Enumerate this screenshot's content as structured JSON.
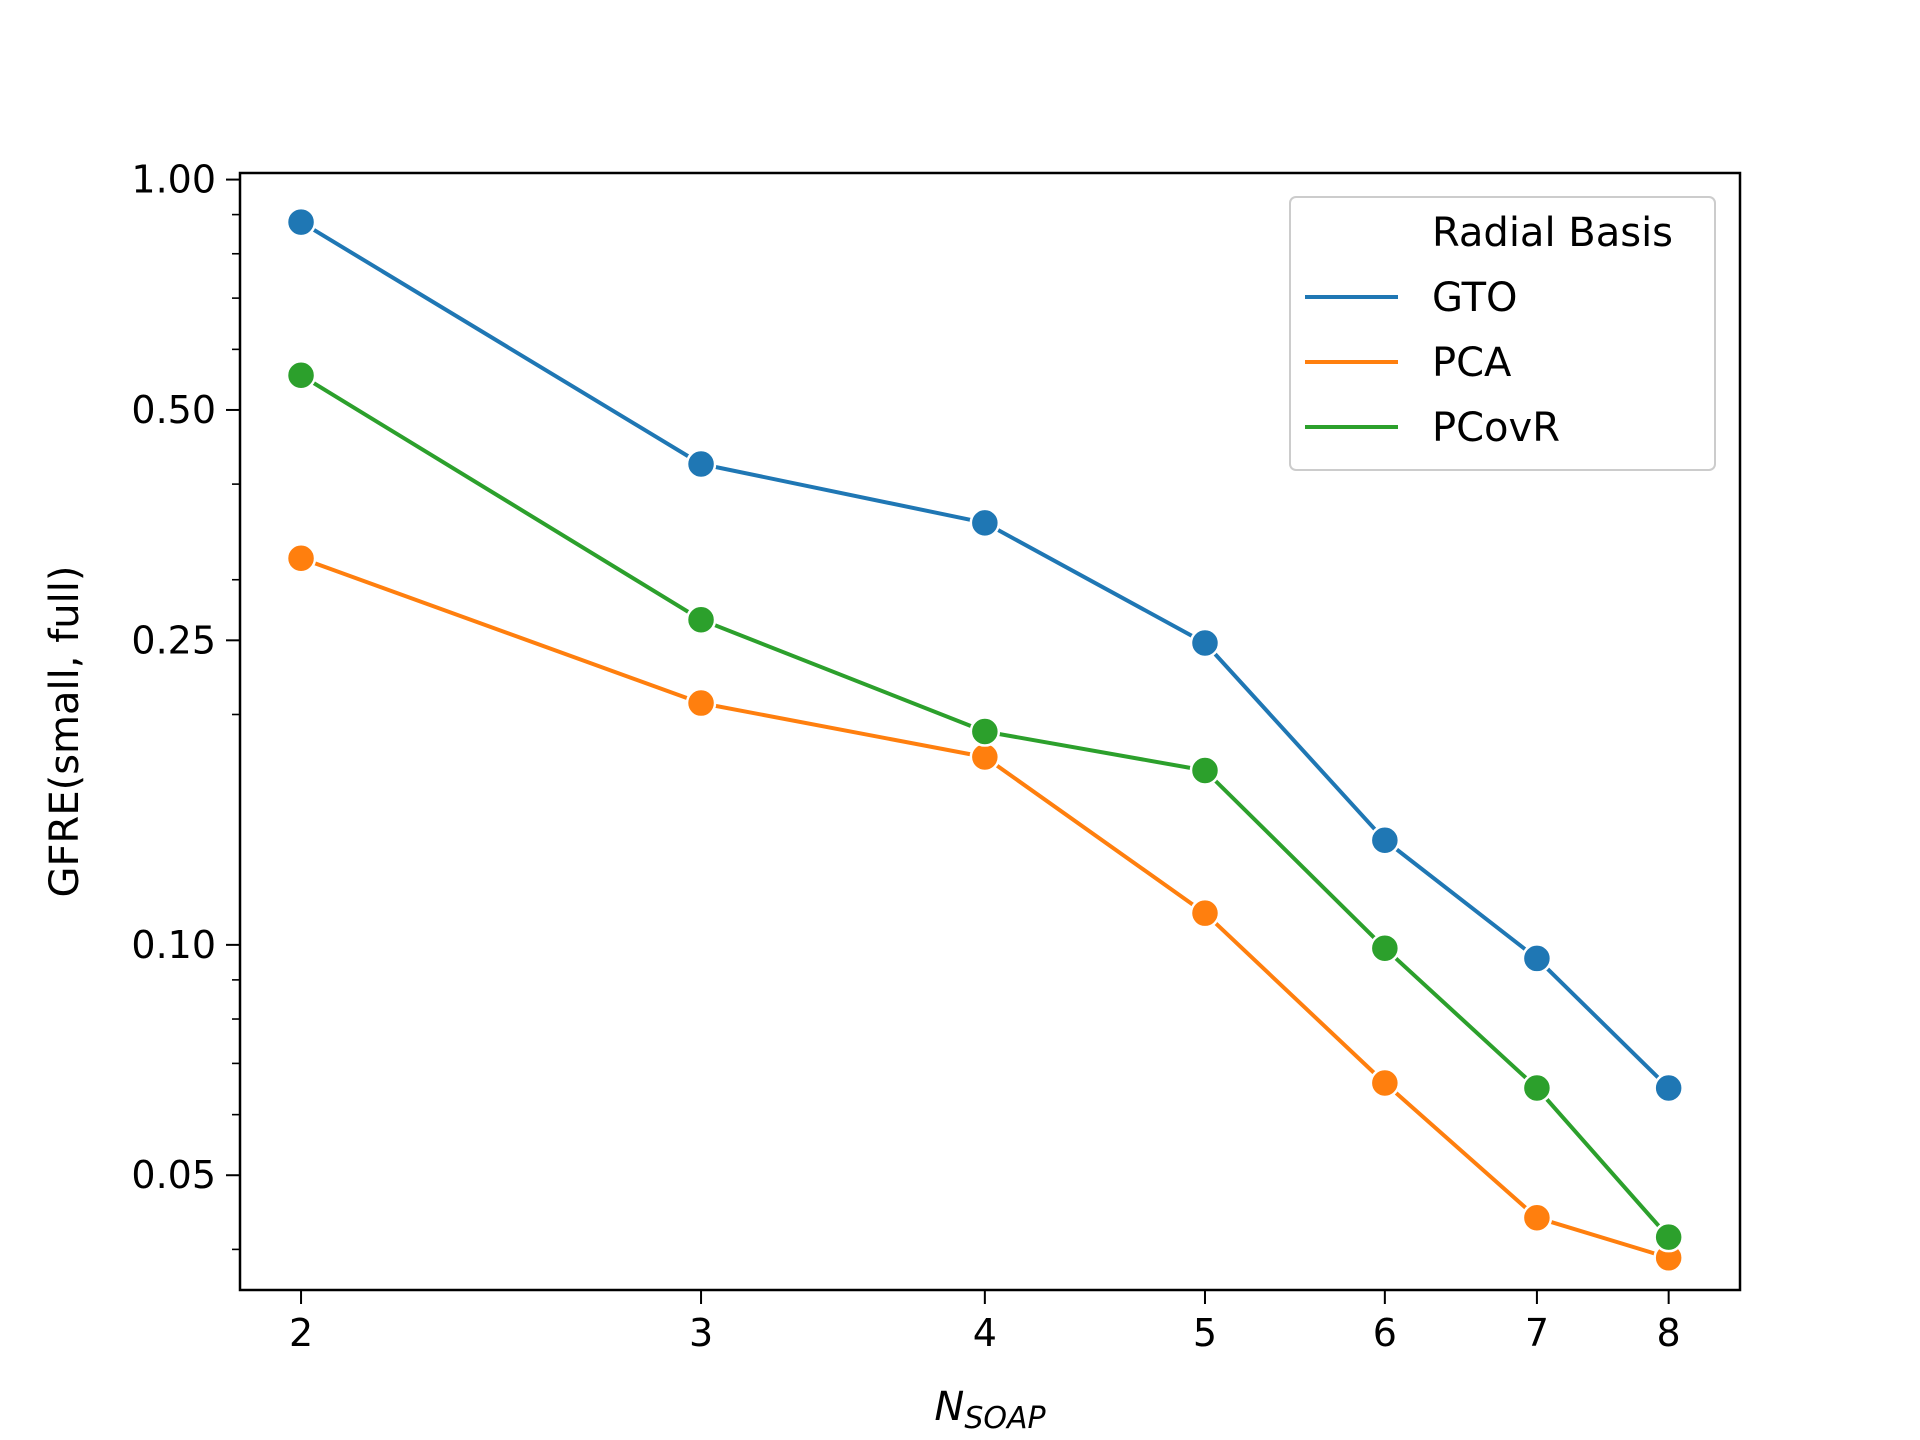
{
  "chart_data": {
    "type": "line",
    "xlabel": "N",
    "xlabel_sub": "SOAP",
    "ylabel": "GFRE(small, full)",
    "xscale": "log",
    "yscale": "log",
    "xlim": [
      1.88,
      8.6
    ],
    "ylim": [
      0.0354,
      1.02
    ],
    "x": [
      2,
      3,
      4,
      5,
      6,
      7,
      8
    ],
    "xticks": [
      "2",
      "3",
      "4",
      "5",
      "6",
      "7",
      "8"
    ],
    "yticks": [
      {
        "value": 1.0,
        "label": "1.00"
      },
      {
        "value": 0.5,
        "label": "0.50"
      },
      {
        "value": 0.25,
        "label": "0.25"
      },
      {
        "value": 0.1,
        "label": "0.10"
      },
      {
        "value": 0.05,
        "label": "0.05"
      }
    ],
    "y_minor_ticks": [
      0.04,
      0.06,
      0.07,
      0.08,
      0.09,
      0.2,
      0.3,
      0.4,
      0.6,
      0.7,
      0.8,
      0.9
    ],
    "legend": {
      "title": "Radial Basis",
      "placement": "top-right"
    },
    "grid": false,
    "series": [
      {
        "name": "GTO",
        "color": "#1f77b4",
        "values": [
          0.88,
          0.425,
          0.356,
          0.248,
          0.137,
          0.096,
          0.065
        ]
      },
      {
        "name": "PCA",
        "color": "#ff7f0e",
        "values": [
          0.32,
          0.207,
          0.176,
          0.11,
          0.066,
          0.044,
          0.039
        ]
      },
      {
        "name": "PCovR",
        "color": "#2ca02c",
        "values": [
          0.555,
          0.266,
          0.19,
          0.169,
          0.099,
          0.065,
          0.0415
        ]
      }
    ]
  }
}
